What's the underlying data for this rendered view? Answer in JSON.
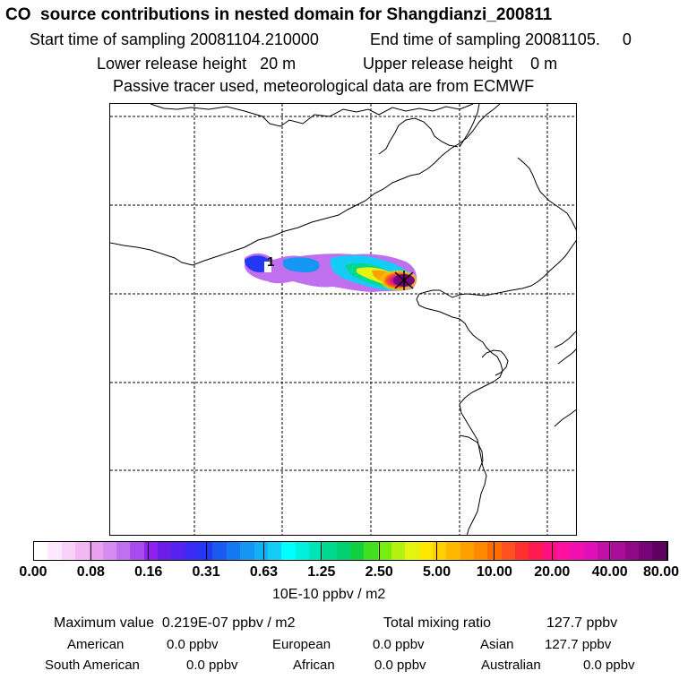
{
  "header": {
    "title": "CO  source contributions in nested domain for Shangdianzi_200811",
    "start_label": "Start time of sampling 20081104.210000",
    "end_label": "End time of sampling 20081105.     0",
    "lower_label": "Lower release height   20 m",
    "upper_label": "Upper release height    0 m",
    "tracer_label": "Passive tracer used, meteorological data are from ECMWF"
  },
  "map": {
    "marker_label": "1",
    "receptor_symbol": "X"
  },
  "colorbar": {
    "tick_labels": [
      "0.00",
      "0.08",
      "0.16",
      "0.31",
      "0.63",
      "1.25",
      "2.50",
      "5.00",
      "10.00",
      "20.00",
      "40.00",
      "80.00"
    ],
    "unit_label": "10E-10 ppbv / m2",
    "colors": [
      "#ffffff",
      "#fde8fd",
      "#f9d2f9",
      "#f2b8f2",
      "#e9a0ef",
      "#d78aef",
      "#c070ef",
      "#a84cef",
      "#9020ef",
      "#6a1ee8",
      "#5522f0",
      "#3a2cf2",
      "#2238f2",
      "#1a5af0",
      "#1478f0",
      "#1496f2",
      "#14b0f4",
      "#14ccf6",
      "#00ffff",
      "#00f0e0",
      "#00e4b8",
      "#00d890",
      "#00d070",
      "#10d040",
      "#40e020",
      "#78ee10",
      "#b4f010",
      "#e4f410",
      "#ffe800",
      "#ffd000",
      "#ffb800",
      "#ffa000",
      "#ff8800",
      "#ff6c00",
      "#ff5020",
      "#ff3030",
      "#ff1a50",
      "#ff1080",
      "#ff10a0",
      "#f010b0",
      "#e010b8",
      "#c010a8",
      "#a80c98",
      "#900888",
      "#780478",
      "#600060"
    ]
  },
  "summary": {
    "max_label": "Maximum value  0.219E-07 ppbv / m2",
    "total_label": "Total mixing ratio",
    "total_value": "127.7 ppbv",
    "american_label": "American",
    "american_value": "0.0 ppbv",
    "european_label": "European",
    "european_value": "0.0 ppbv",
    "asian_label": "Asian",
    "asian_value": "127.7 ppbv",
    "south_american_label": "South American",
    "south_american_value": "0.0 ppbv",
    "african_label": "African",
    "african_value": "0.0 ppbv",
    "australian_label": "Australian",
    "australian_value": "0.0 ppbv"
  }
}
